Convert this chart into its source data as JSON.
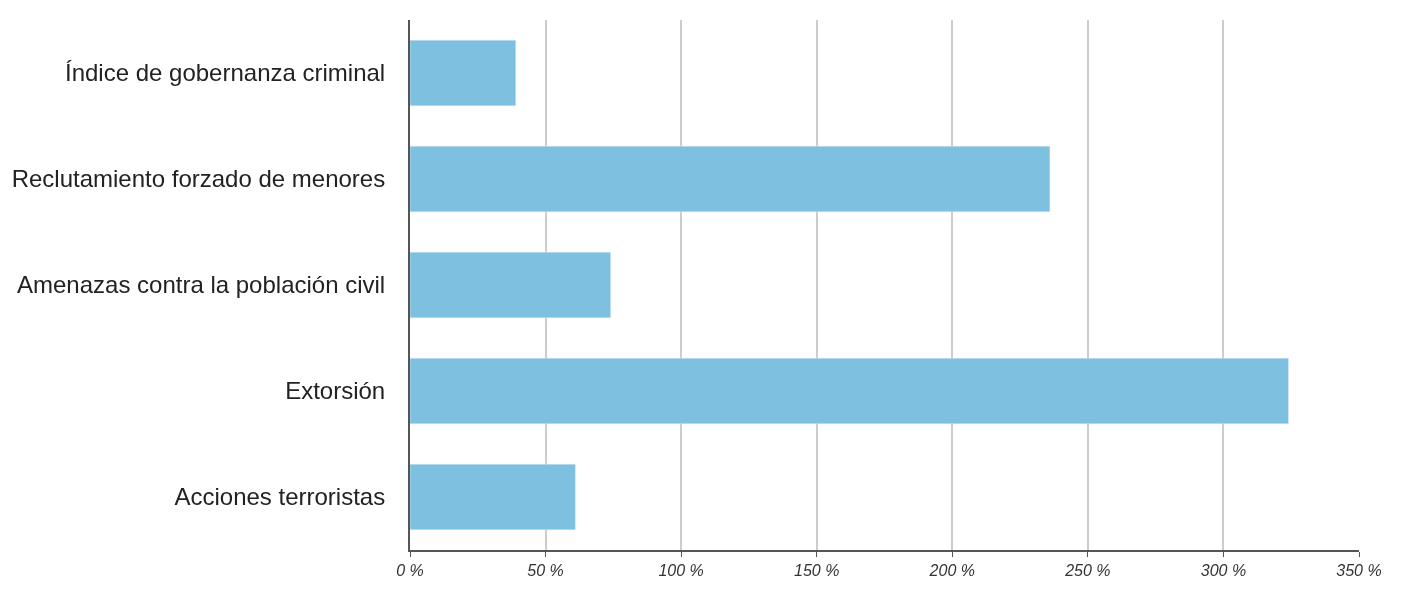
{
  "chart_data": {
    "type": "bar",
    "orientation": "horizontal",
    "categories": [
      "Índice de gobernanza criminal",
      "Reclutamiento forzado de menores",
      "Amenazas contra la población civil",
      "Extorsión",
      "Acciones terroristas"
    ],
    "values": [
      39,
      236,
      74,
      324,
      61
    ],
    "color": "#7dc0df",
    "xlim": [
      0,
      350
    ],
    "xticks": [
      {
        "value": 0,
        "label": "0 %"
      },
      {
        "value": 50,
        "label": "50 %"
      },
      {
        "value": 100,
        "label": "100 %"
      },
      {
        "value": 150,
        "label": "150 %"
      },
      {
        "value": 200,
        "label": "200 %"
      },
      {
        "value": 250,
        "label": "250 %"
      },
      {
        "value": 300,
        "label": "300 %"
      },
      {
        "value": 350,
        "label": "350 %"
      }
    ],
    "grid": "x",
    "legend": false
  }
}
